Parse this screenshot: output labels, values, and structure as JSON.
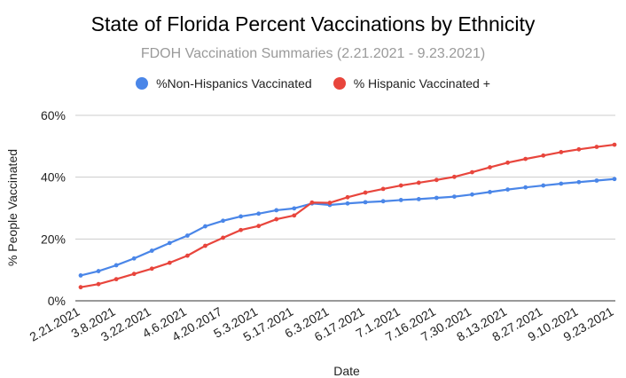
{
  "chart_data": {
    "type": "line",
    "title": "State of Florida Percent Vaccinations by Ethnicity",
    "subtitle": "FDOH Vaccination Summaries (2.21.2021 - 9.23.2021)",
    "xlabel": "Date",
    "ylabel": "% People Vaccinated",
    "ylim": [
      0,
      60
    ],
    "yticks": [
      "0%",
      "20%",
      "40%",
      "60%"
    ],
    "grid": true,
    "legend_position": "top",
    "x_tick_labels": [
      "2.21.2021",
      "3.8.2021",
      "3.22.2021",
      "4.6.2021",
      "4.20.2017",
      "5.3.2021",
      "5.17.2021",
      "6.3.2021",
      "6.17.2021",
      "7.1.2021",
      "7.16.2021",
      "7.30.2021",
      "8.13.2021",
      "8.27.2021",
      "9.10.2021",
      "9.23.2021"
    ],
    "series": [
      {
        "name": "%Non-Hispanics Vaccinated",
        "color": "#4a86e8",
        "values": [
          8.2,
          9.6,
          11.5,
          13.7,
          16.2,
          18.7,
          21.1,
          24.1,
          25.9,
          27.3,
          28.2,
          29.3,
          29.9,
          31.5,
          31.0,
          31.5,
          31.9,
          32.2,
          32.6,
          32.9,
          33.3,
          33.7,
          34.4,
          35.2,
          36.0,
          36.7,
          37.3,
          37.9,
          38.4,
          38.9,
          39.4
        ]
      },
      {
        "name": "% Hispanic Vaccinated +",
        "color": "#e8453c",
        "values": [
          4.4,
          5.4,
          7.0,
          8.7,
          10.4,
          12.3,
          14.6,
          17.8,
          20.4,
          22.9,
          24.2,
          26.4,
          27.6,
          31.8,
          31.7,
          33.5,
          35.0,
          36.2,
          37.3,
          38.2,
          39.1,
          40.1,
          41.6,
          43.2,
          44.7,
          45.9,
          47.0,
          48.1,
          49.0,
          49.8,
          50.5
        ]
      }
    ]
  }
}
